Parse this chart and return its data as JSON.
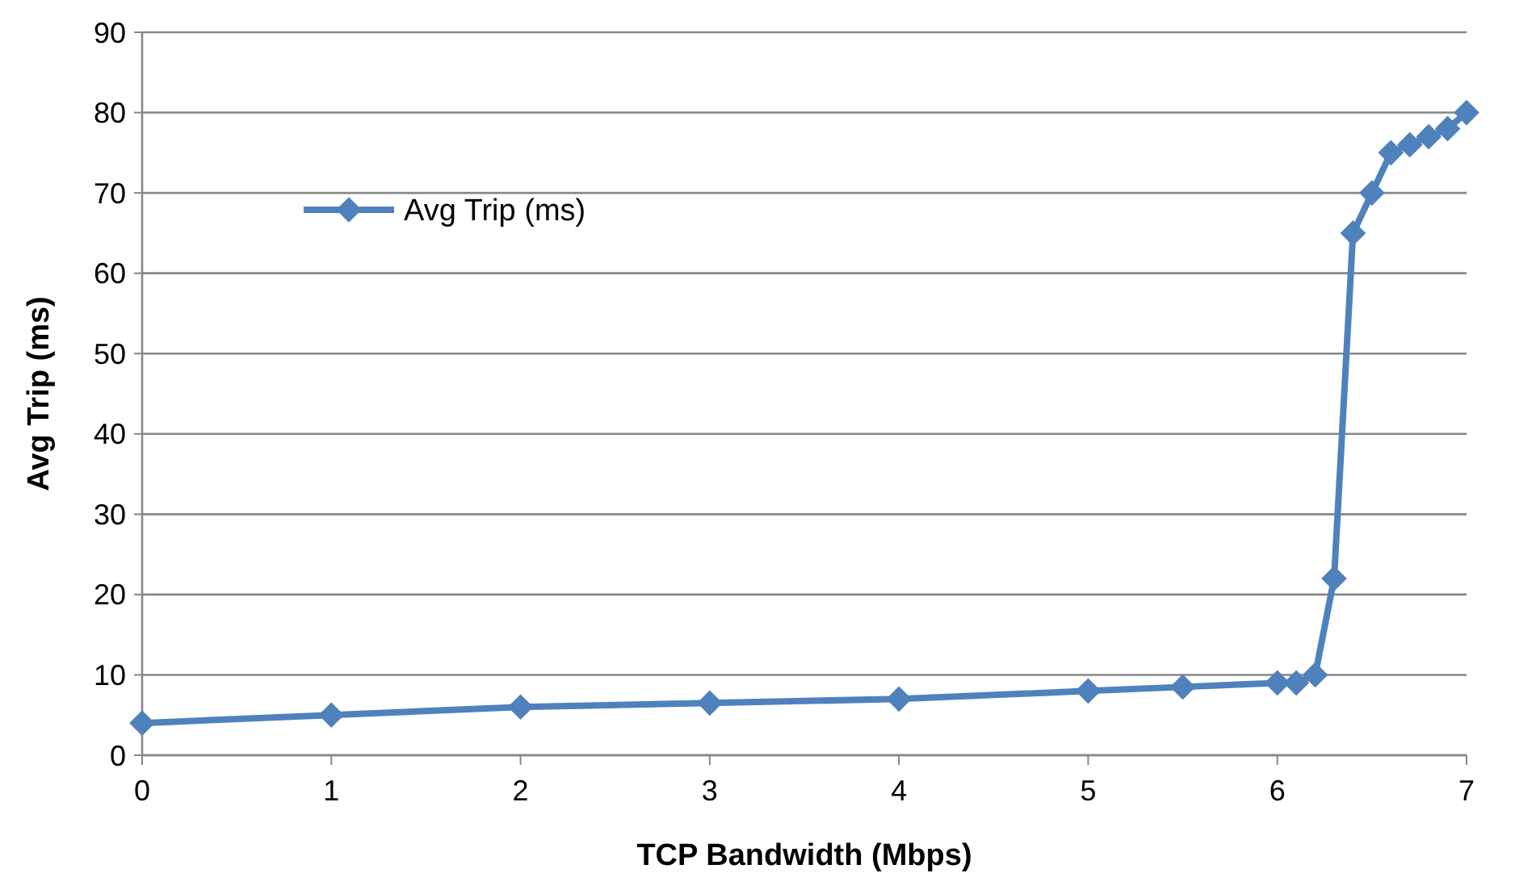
{
  "chart_data": {
    "type": "line",
    "xlabel": "TCP Bandwidth (Mbps)",
    "ylabel": "Avg Trip (ms)",
    "x": [
      0,
      1,
      2,
      3,
      4,
      5,
      5.5,
      6,
      6.1,
      6.2,
      6.3,
      6.4,
      6.5,
      6.6,
      6.7,
      6.8,
      6.9,
      7
    ],
    "series": [
      {
        "name": "Avg Trip (ms)",
        "color": "#4f81bd",
        "values": [
          4,
          5,
          6,
          6.5,
          7,
          8,
          8.5,
          9,
          9,
          10,
          22,
          65,
          70,
          75,
          76,
          77,
          78,
          80
        ]
      }
    ],
    "xlim": [
      0,
      7
    ],
    "xticks": [
      0,
      1,
      2,
      3,
      4,
      5,
      6,
      7
    ],
    "ylim": [
      0,
      90
    ],
    "yticks": [
      0,
      10,
      20,
      30,
      40,
      50,
      60,
      70,
      80,
      90
    ],
    "grid": "y",
    "legend": "top left",
    "marker": "diamond",
    "line_style": "solid"
  }
}
